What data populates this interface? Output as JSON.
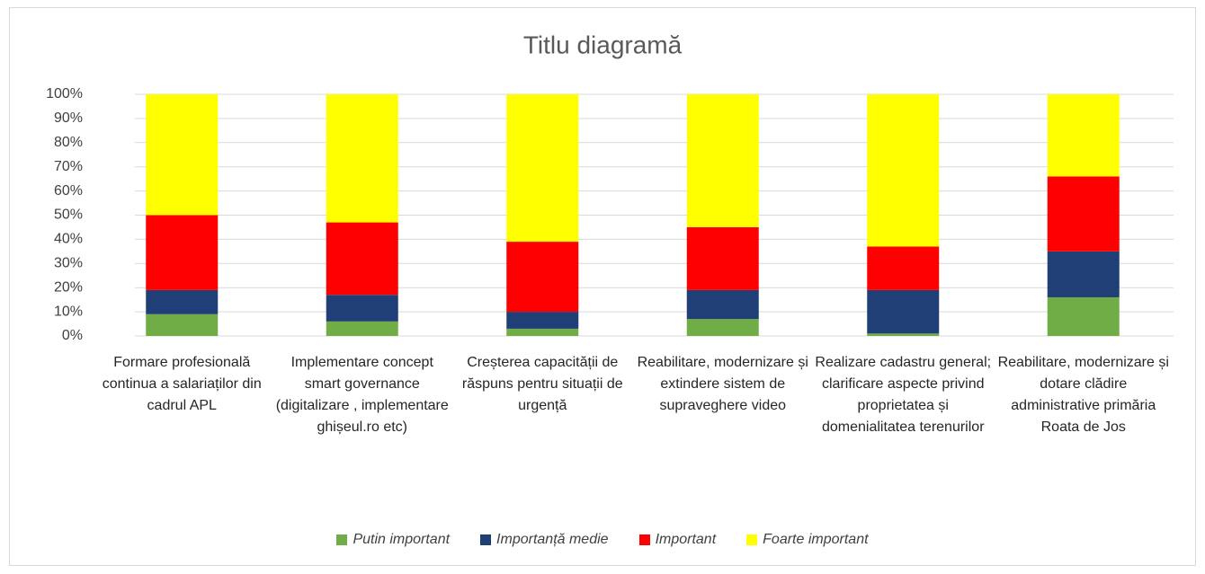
{
  "chart_data": {
    "type": "stacked_bar_100",
    "title": "Titlu diagramă",
    "categories": [
      "Formare profesională continua a salariaților din cadrul APL",
      "Implementare concept smart governance (digitalizare , implementare ghișeul.ro etc)",
      "Creșterea capacității de răspuns pentru situații de urgență",
      "Reabilitare, modernizare și extindere sistem de supraveghere video",
      "Realizare cadastru general; clarificare aspecte privind proprietatea și domenialitatea terenurilor",
      "Reabilitare, modernizare și dotare clădire administrative primăria Roata de Jos"
    ],
    "series": [
      {
        "name": "Putin important",
        "color": "#70ad47",
        "values": [
          9,
          6,
          3,
          7,
          1,
          16
        ]
      },
      {
        "name": "Importanță medie",
        "color": "#203f77",
        "values": [
          10,
          11,
          7,
          12,
          18,
          19
        ]
      },
      {
        "name": "Important",
        "color": "#ff0000",
        "values": [
          31,
          30,
          29,
          26,
          18,
          31
        ]
      },
      {
        "name": "Foarte important",
        "color": "#ffff00",
        "values": [
          50,
          53,
          61,
          55,
          63,
          34
        ]
      }
    ],
    "ylim": [
      0,
      100
    ],
    "yticks": [
      {
        "value": 0,
        "label": "0%"
      },
      {
        "value": 10,
        "label": "10%"
      },
      {
        "value": 20,
        "label": "20%"
      },
      {
        "value": 30,
        "label": "30%"
      },
      {
        "value": 40,
        "label": "40%"
      },
      {
        "value": 50,
        "label": "50%"
      },
      {
        "value": 60,
        "label": "60%"
      },
      {
        "value": 70,
        "label": "70%"
      },
      {
        "value": 80,
        "label": "80%"
      },
      {
        "value": 90,
        "label": "90%"
      },
      {
        "value": 100,
        "label": "100%"
      }
    ],
    "grid": true,
    "legend": "bottom"
  }
}
